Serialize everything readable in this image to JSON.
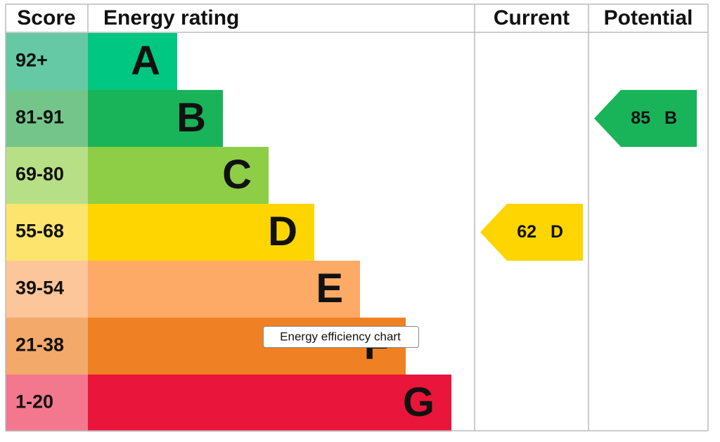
{
  "header": {
    "score": "Score",
    "rating": "Energy rating",
    "current": "Current",
    "potential": "Potential"
  },
  "bands": [
    {
      "score": "92+",
      "letter": "A",
      "color": "#00c781",
      "light": "#66c9a6"
    },
    {
      "score": "81-91",
      "letter": "B",
      "color": "#19b459",
      "light": "#74c58a"
    },
    {
      "score": "69-80",
      "letter": "C",
      "color": "#8dce46",
      "light": "#b6df86"
    },
    {
      "score": "55-68",
      "letter": "D",
      "color": "#ffd500",
      "light": "#fde46c"
    },
    {
      "score": "39-54",
      "letter": "E",
      "color": "#fcaa65",
      "light": "#fdc59a"
    },
    {
      "score": "21-38",
      "letter": "F",
      "color": "#ef8023",
      "light": "#f3a96a"
    },
    {
      "score": "1-20",
      "letter": "G",
      "color": "#e9153b",
      "light": "#f3788e"
    }
  ],
  "current": {
    "value": 62,
    "rating": "D"
  },
  "potential": {
    "value": 85,
    "rating": "B"
  },
  "tooltip": "Energy efficiency chart"
}
